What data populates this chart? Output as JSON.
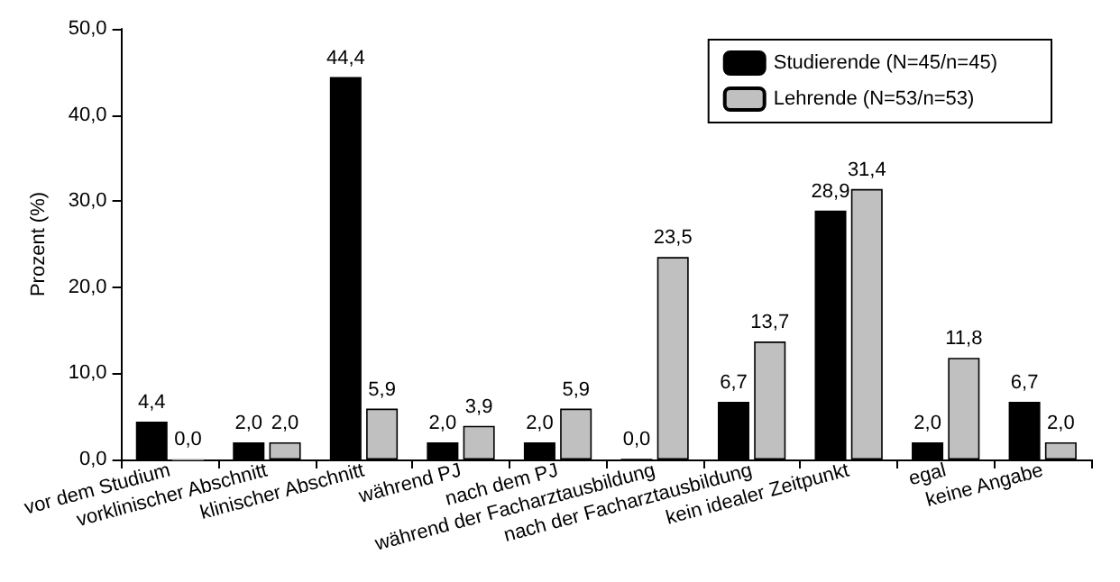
{
  "chart_data": {
    "type": "bar",
    "ylabel": "Prozent (%)",
    "categories": [
      "vor dem Studium",
      "vorklinischer Abschnitt",
      "klinischer Abschnitt",
      "während PJ",
      "nach dem PJ",
      "während der Facharztausbildung",
      "nach der Facharztausbildung",
      "kein idealer Zeitpunkt",
      "egal",
      "keine Angabe"
    ],
    "series": [
      {
        "name": "Studierende (N=45/n=45)",
        "color": "#000000",
        "values": [
          4.4,
          2.0,
          44.4,
          2.0,
          2.0,
          0.0,
          6.7,
          28.9,
          2.0,
          6.7
        ],
        "value_labels": [
          "4,4",
          "2,0",
          "44,4",
          "2,0",
          "2,0",
          "0,0",
          "6,7",
          "28,9",
          "2,0",
          "6,7"
        ]
      },
      {
        "name": "Lehrende (N=53/n=53)",
        "color": "#c0c0c0",
        "values": [
          0.0,
          2.0,
          5.9,
          3.9,
          5.9,
          23.5,
          13.7,
          31.4,
          11.8,
          2.0
        ],
        "value_labels": [
          "0,0",
          "2,0",
          "5,9",
          "3,9",
          "5,9",
          "23,5",
          "13,7",
          "31,4",
          "11,8",
          "2,0"
        ]
      }
    ],
    "ylim": [
      0,
      50
    ],
    "yticks": [
      {
        "value": 0,
        "label": "0,0"
      },
      {
        "value": 10,
        "label": "10,0"
      },
      {
        "value": 20,
        "label": "20,0"
      },
      {
        "value": 30,
        "label": "30,0"
      },
      {
        "value": 40,
        "label": "40,0"
      },
      {
        "value": 50,
        "label": "50,0"
      }
    ],
    "grid": false,
    "legend": "top right"
  }
}
